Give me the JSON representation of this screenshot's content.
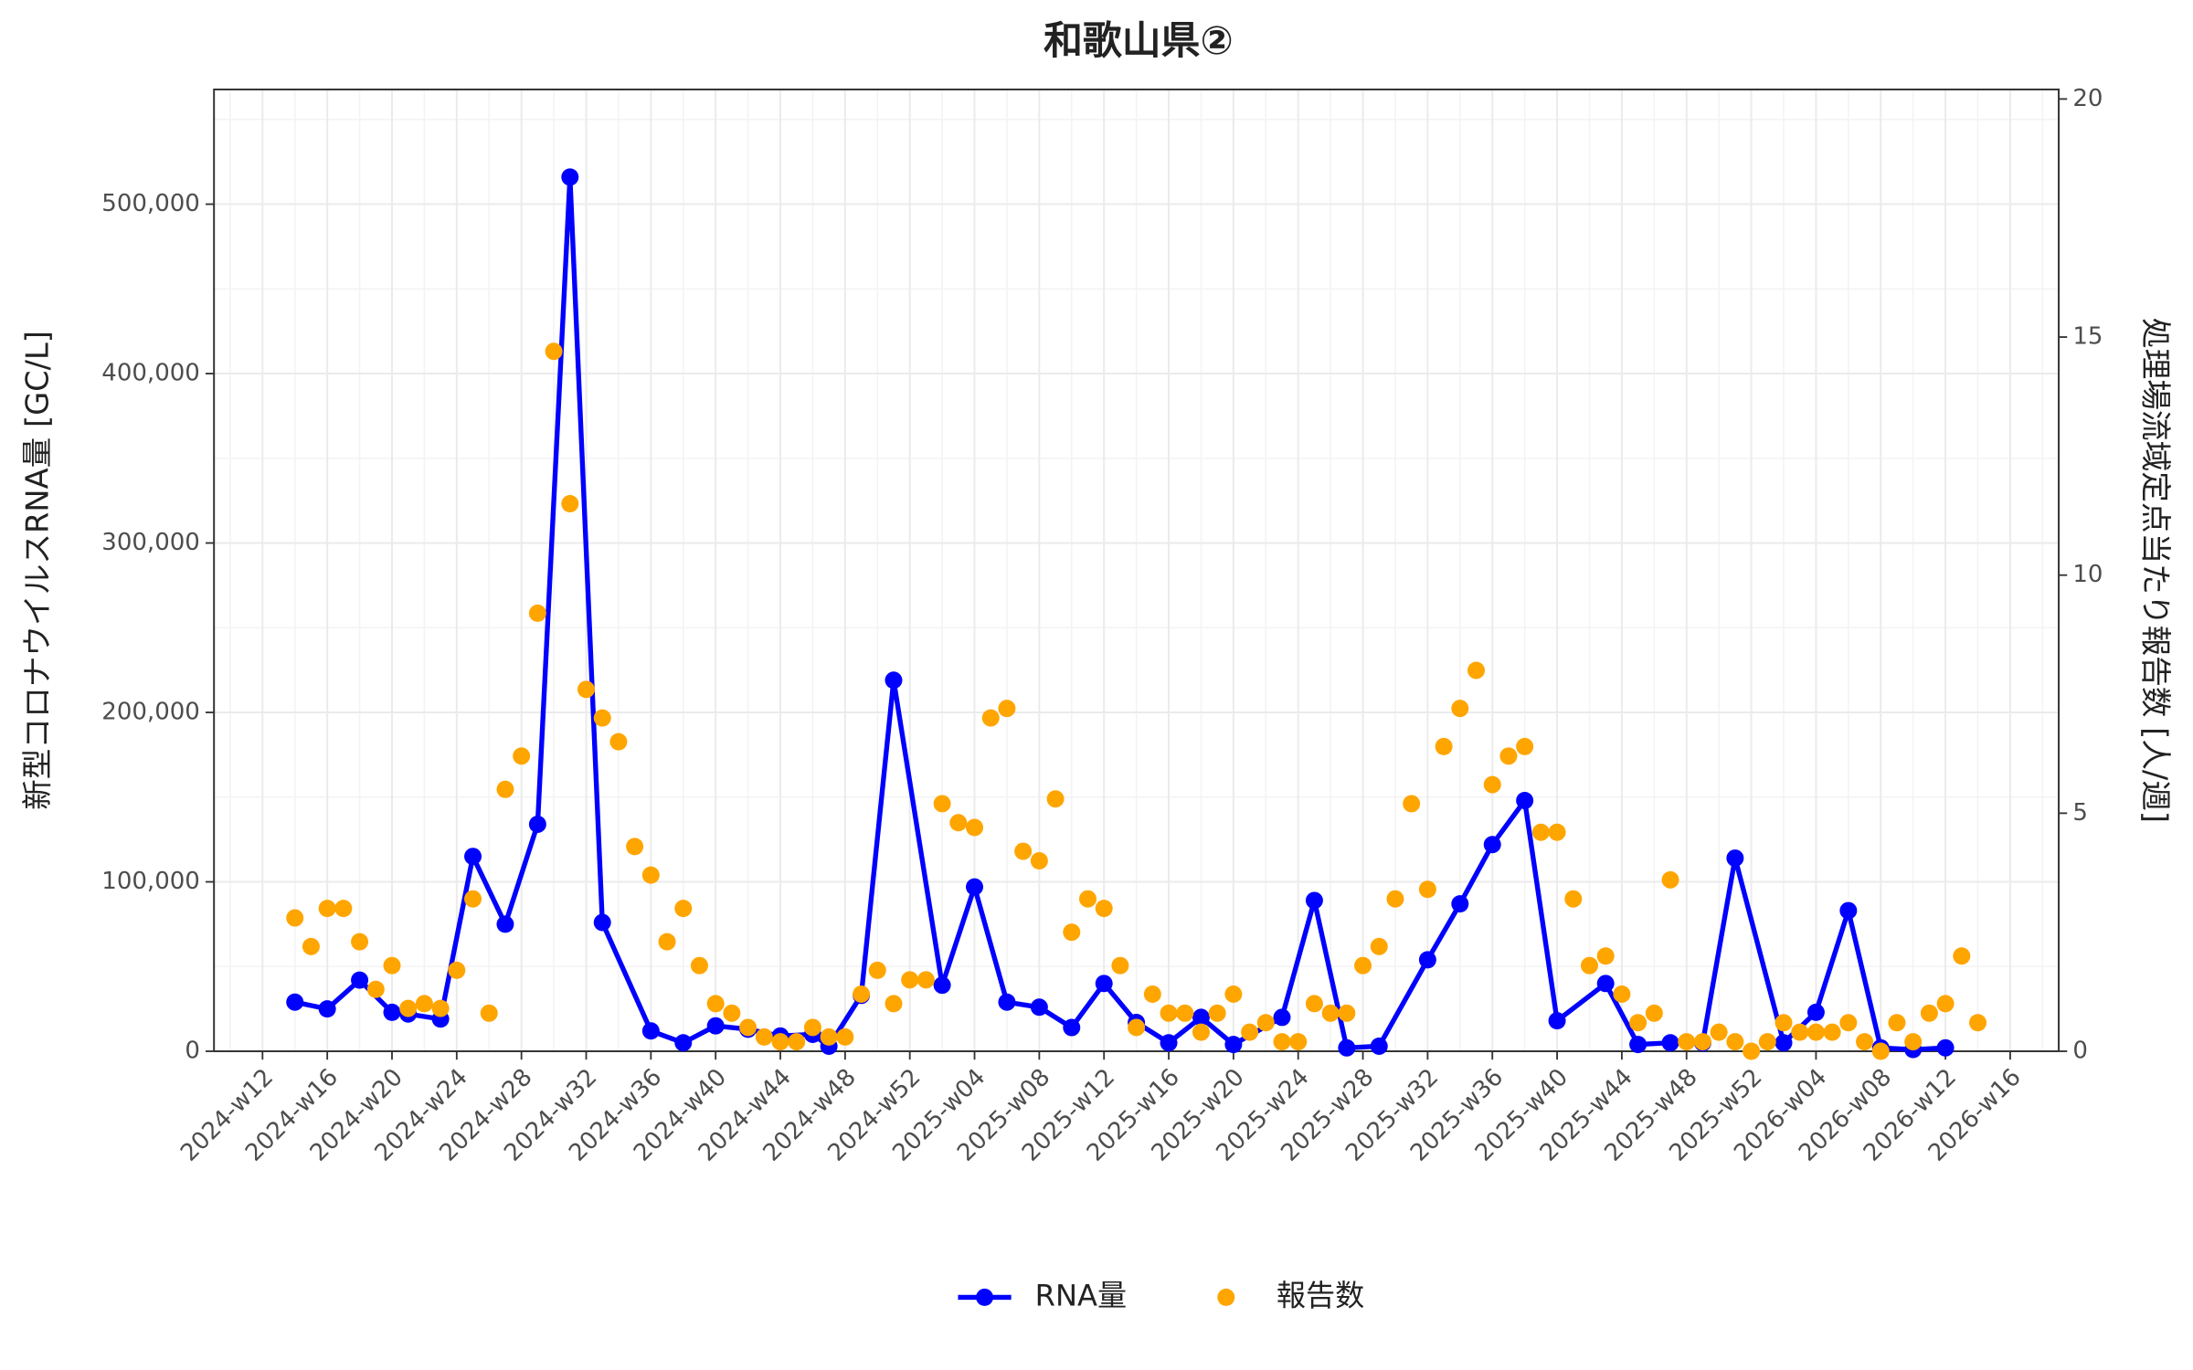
{
  "chart_data": {
    "type": "line",
    "title": "和歌山県②",
    "y_label": "新型コロナウイルスRNA量 [GC/L]",
    "y2_label": "処理場流域定点当たり報告数 [人/週]",
    "xlim": [
      "2024-w09",
      "2026-w19"
    ],
    "xticks": [
      "2024-w12",
      "2024-w16",
      "2024-w20",
      "2024-w24",
      "2024-w28",
      "2024-w32",
      "2024-w36",
      "2024-w40",
      "2024-w44",
      "2024-w48",
      "2024-w52",
      "2025-w04",
      "2025-w08",
      "2025-w12",
      "2025-w16",
      "2025-w20",
      "2025-w24",
      "2025-w28",
      "2025-w32",
      "2025-w36",
      "2025-w40",
      "2025-w44",
      "2025-w48",
      "2025-w52",
      "2026-w04",
      "2026-w08",
      "2026-w12",
      "2026-w16"
    ],
    "ylim": [
      0,
      567700
    ],
    "yticks": [
      0,
      {
        "value": 100000,
        "label": "100,000"
      },
      {
        "value": 200000,
        "label": "200,000"
      },
      {
        "value": 300000,
        "label": "300,000"
      },
      {
        "value": 400000,
        "label": "400,000"
      },
      {
        "value": 500000,
        "label": "500,000"
      }
    ],
    "y2lim": [
      0,
      20.2
    ],
    "y2ticks": [
      0,
      5,
      10,
      15,
      20
    ],
    "grid": true,
    "legend": "bottom",
    "series": [
      {
        "name": "RNA量",
        "color": "#0000ff",
        "mark": "line",
        "x": [
          "2024-w14",
          "2024-w16",
          "2024-w18",
          "2024-w20",
          "2024-w21",
          "2024-w23",
          "2024-w25",
          "2024-w27",
          "2024-w29",
          "2024-w31",
          "2024-w33",
          "2024-w36",
          "2024-w38",
          "2024-w40",
          "2024-w42",
          "2024-w44",
          "2024-w46",
          "2024-w47",
          "2024-w49",
          "2024-w51",
          "2025-w02",
          "2025-w04",
          "2025-w06",
          "2025-w08",
          "2025-w10",
          "2025-w12",
          "2025-w14",
          "2025-w16",
          "2025-w18",
          "2025-w20",
          "2025-w23",
          "2025-w25",
          "2025-w27",
          "2025-w29",
          "2025-w32",
          "2025-w34",
          "2025-w36",
          "2025-w38",
          "2025-w40",
          "2025-w43",
          "2025-w45",
          "2025-w47",
          "2025-w49",
          "2025-w51",
          "2026-w02",
          "2026-w04",
          "2026-w06",
          "2026-w08",
          "2026-w10",
          "2026-w12"
        ],
        "values": [
          29000,
          25000,
          42000,
          23000,
          22000,
          19000,
          115000,
          75000,
          134000,
          516000,
          76000,
          12000,
          5000,
          15000,
          13000,
          9000,
          10000,
          3000,
          33000,
          219000,
          39000,
          97000,
          29000,
          26000,
          14000,
          40000,
          17000,
          5000,
          20000,
          4000,
          20000,
          89000,
          2000,
          3000,
          54000,
          87000,
          122000,
          148000,
          18000,
          40000,
          4000,
          5000,
          5000,
          114000,
          5000,
          23000,
          83000,
          2000,
          1000,
          2000
        ]
      },
      {
        "name": "報告数",
        "color": "#ffa500",
        "mark": "point",
        "axis": "y2",
        "x": [
          "2024-w14",
          "2024-w15",
          "2024-w16",
          "2024-w17",
          "2024-w18",
          "2024-w19",
          "2024-w20",
          "2024-w21",
          "2024-w22",
          "2024-w23",
          "2024-w24",
          "2024-w25",
          "2024-w26",
          "2024-w27",
          "2024-w28",
          "2024-w29",
          "2024-w30",
          "2024-w31",
          "2024-w32",
          "2024-w33",
          "2024-w34",
          "2024-w35",
          "2024-w36",
          "2024-w37",
          "2024-w38",
          "2024-w39",
          "2024-w40",
          "2024-w41",
          "2024-w42",
          "2024-w43",
          "2024-w44",
          "2024-w45",
          "2024-w46",
          "2024-w47",
          "2024-w48",
          "2024-w49",
          "2024-w50",
          "2024-w51",
          "2024-w52",
          "2025-w01",
          "2025-w02",
          "2025-w03",
          "2025-w04",
          "2025-w05",
          "2025-w06",
          "2025-w07",
          "2025-w08",
          "2025-w09",
          "2025-w10",
          "2025-w11",
          "2025-w12",
          "2025-w13",
          "2025-w14",
          "2025-w15",
          "2025-w16",
          "2025-w17",
          "2025-w18",
          "2025-w19",
          "2025-w20",
          "2025-w21",
          "2025-w22",
          "2025-w23",
          "2025-w24",
          "2025-w25",
          "2025-w26",
          "2025-w27",
          "2025-w28",
          "2025-w29",
          "2025-w30",
          "2025-w31",
          "2025-w32",
          "2025-w33",
          "2025-w34",
          "2025-w35",
          "2025-w36",
          "2025-w37",
          "2025-w38",
          "2025-w39",
          "2025-w40",
          "2025-w41",
          "2025-w42",
          "2025-w43",
          "2025-w44",
          "2025-w45",
          "2025-w46",
          "2025-w47",
          "2025-w48",
          "2025-w49",
          "2025-w50",
          "2025-w51",
          "2025-w52",
          "2026-w01",
          "2026-w02",
          "2026-w03",
          "2026-w04",
          "2026-w05",
          "2026-w06",
          "2026-w07",
          "2026-w08",
          "2026-w09",
          "2026-w10",
          "2026-w11",
          "2026-w12",
          "2026-w13",
          "2026-w14"
        ],
        "values": [
          2.8,
          2.2,
          3.0,
          3.0,
          2.3,
          1.3,
          1.8,
          0.9,
          1.0,
          0.9,
          1.7,
          3.2,
          0.8,
          5.5,
          6.2,
          9.2,
          14.7,
          11.5,
          7.6,
          7.0,
          6.5,
          4.3,
          3.7,
          2.3,
          3.0,
          1.8,
          1.0,
          0.8,
          0.5,
          0.3,
          0.2,
          0.2,
          0.5,
          0.3,
          0.3,
          1.2,
          1.7,
          1.0,
          1.5,
          1.5,
          5.2,
          4.8,
          4.7,
          7.0,
          7.2,
          4.2,
          4.0,
          5.3,
          2.5,
          3.2,
          3.0,
          1.8,
          0.5,
          1.2,
          0.8,
          0.8,
          0.4,
          0.8,
          1.2,
          0.4,
          0.6,
          0.2,
          0.2,
          1.0,
          0.8,
          0.8,
          1.8,
          2.2,
          3.2,
          5.2,
          3.4,
          6.4,
          7.2,
          8.0,
          5.6,
          6.2,
          6.4,
          4.6,
          4.6,
          3.2,
          1.8,
          2.0,
          1.2,
          0.6,
          0.8,
          3.6,
          0.2,
          0.2,
          0.4,
          0.2,
          0,
          0.2,
          0.6,
          0.4,
          0.4,
          0.4,
          0.6,
          0.2,
          0,
          0.6,
          0.2,
          0.8,
          1.0,
          2.0,
          0.6
        ]
      }
    ]
  }
}
